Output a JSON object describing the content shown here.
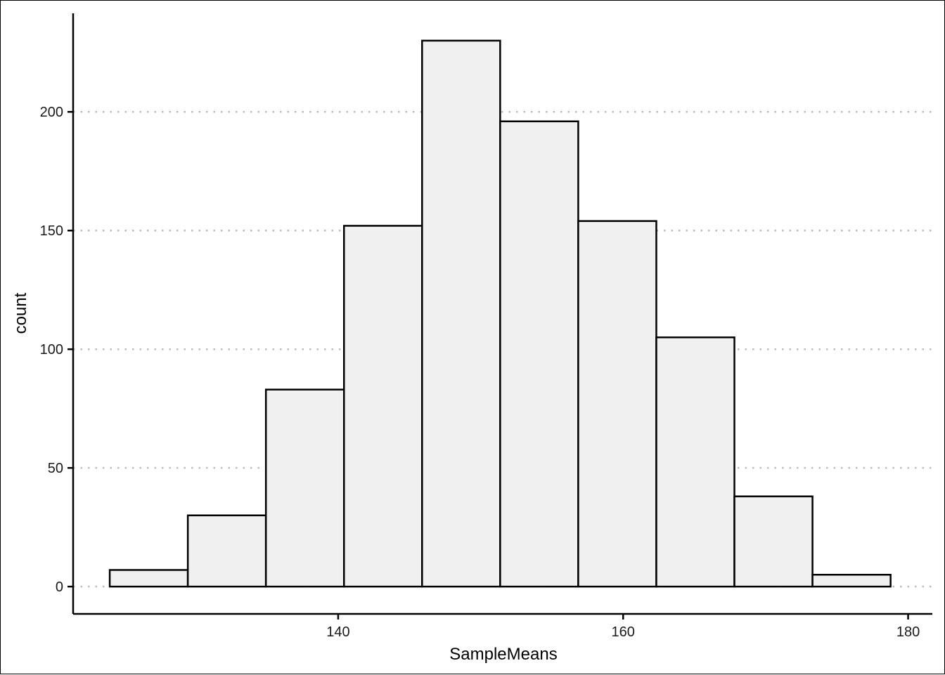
{
  "chart_data": {
    "type": "bar",
    "subtype": "histogram",
    "title": "",
    "xlabel": "SampleMeans",
    "ylabel": "count",
    "xlim": [
      121.4,
      181.7
    ],
    "ylim": [
      -11.5,
      241.5
    ],
    "x_ticks": [
      140,
      160,
      180
    ],
    "y_ticks": [
      0,
      50,
      100,
      150,
      200
    ],
    "grid": "horizontal-dotted",
    "legend": "none",
    "bin_edges": [
      123.97,
      129.45,
      134.93,
      140.41,
      145.89,
      151.37,
      156.85,
      162.33,
      167.81,
      173.29,
      178.77
    ],
    "counts": [
      7,
      30,
      83,
      152,
      230,
      196,
      154,
      105,
      38,
      5
    ],
    "colors": {
      "bar_fill": "#f0f0f0",
      "bar_stroke": "#000000",
      "grid": "#bdbdbd"
    }
  }
}
